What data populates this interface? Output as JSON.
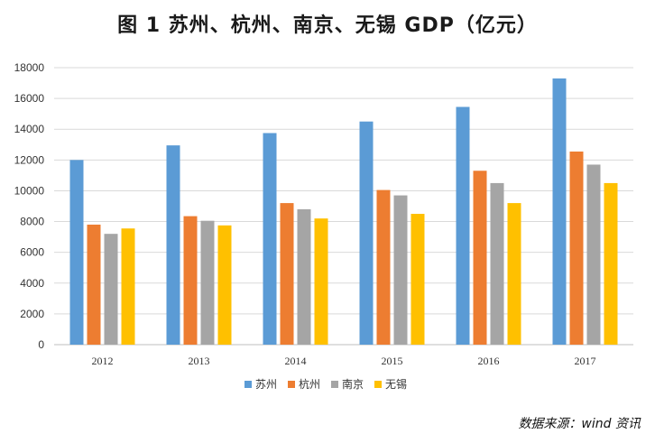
{
  "chart_data": {
    "type": "bar",
    "title": "图 1   苏州、杭州、南京、无锡 GDP（亿元）",
    "xlabel": "",
    "ylabel": "",
    "categories": [
      "2012",
      "2013",
      "2014",
      "2015",
      "2016",
      "2017"
    ],
    "series": [
      {
        "name": "苏州",
        "color": "#5B9BD5",
        "values": [
          12000,
          12950,
          13750,
          14500,
          15450,
          17300
        ]
      },
      {
        "name": "杭州",
        "color": "#ED7D31",
        "values": [
          7800,
          8350,
          9200,
          10050,
          11300,
          12550
        ]
      },
      {
        "name": "南京",
        "color": "#A5A5A5",
        "values": [
          7200,
          8050,
          8800,
          9700,
          10500,
          11700
        ]
      },
      {
        "name": "无锡",
        "color": "#FFC000",
        "values": [
          7550,
          7750,
          8200,
          8500,
          9200,
          10500
        ]
      }
    ],
    "ylim": [
      0,
      18000
    ],
    "yticks": [
      0,
      2000,
      4000,
      6000,
      8000,
      10000,
      12000,
      14000,
      16000,
      18000
    ],
    "grid": true,
    "legend": "bottom"
  },
  "source": "数据来源：wind 资讯"
}
